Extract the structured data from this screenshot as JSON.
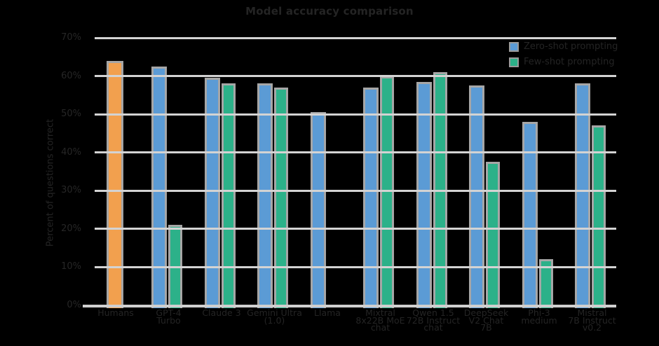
{
  "title": "Model accuracy comparison",
  "y_axis_label": "Percent of questions correct",
  "legend": {
    "position": "upper right",
    "items": [
      {
        "label": "Zero-shot prompting",
        "color": "#5B9BD5"
      },
      {
        "label": "Few-shot prompting",
        "color": "#2CB189"
      }
    ]
  },
  "colors": {
    "background": "#000000",
    "gridline": "#d3d3d3",
    "axis_line": "#cfcfcf",
    "bar_edge": "#a6a6a6",
    "text": "#242424",
    "human_bar": "#F2A04E",
    "blue_bar": "#5B9BD5",
    "green_bar": "#2CB189"
  },
  "chart_data": {
    "type": "bar",
    "title": "Model accuracy comparison",
    "xlabel": "",
    "ylabel": "Percent of questions correct",
    "ylim": [
      0,
      70
    ],
    "grid": true,
    "legend_position": "upper right",
    "y_tick_values": [
      0,
      10,
      20,
      30,
      40,
      50,
      60,
      70
    ],
    "y_tick_labels": [
      "0%",
      "10%",
      "20%",
      "30%",
      "40%",
      "50%",
      "60%",
      "70%"
    ],
    "categories": [
      "Humans",
      "GPT-4\nTurbo",
      "Claude 3",
      "Gemini Ultra\n(1.0)",
      "Llama",
      "Mixtral\n8x22B MoE\nchat",
      "Qwen 1.5\n72B Instruct\nchat",
      "DeepSeek\nV2 Chat\n7B",
      "Phi-3\nmedium",
      "Mistral\n7B Instruct\nv0.2"
    ],
    "series": [
      {
        "name": "Humans",
        "color": "#F2A04E",
        "values": [
          64,
          null,
          null,
          null,
          null,
          null,
          null,
          null,
          null,
          null
        ]
      },
      {
        "name": "Zero-shot prompting",
        "color": "#5B9BD5",
        "values": [
          null,
          62.5,
          59.5,
          58,
          50.5,
          57,
          58.5,
          57.5,
          48,
          58
        ]
      },
      {
        "name": "Few-shot prompting",
        "color": "#2CB189",
        "values": [
          null,
          21,
          58,
          57,
          null,
          60,
          61,
          37.5,
          12,
          47
        ]
      }
    ]
  }
}
